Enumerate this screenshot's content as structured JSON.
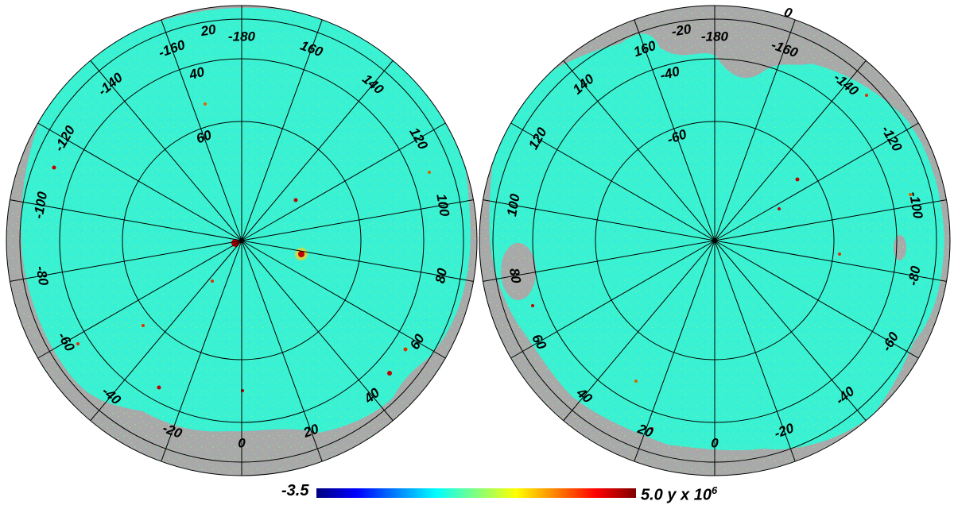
{
  "colors": {
    "mask": "#a9a9a9",
    "field": "#38f2d3",
    "grid": "#000000",
    "colormap": [
      "#00007f",
      "#0000ff",
      "#0080ff",
      "#00ffff",
      "#80ff80",
      "#ffff00",
      "#ff8000",
      "#ff0000",
      "#7f0000"
    ]
  },
  "colorbar": {
    "min_label": "-3.5",
    "max_label": "5.0 y x 10",
    "max_exponent": "6"
  },
  "hemispheres": [
    {
      "id": "left",
      "latitude_labels": [
        "20",
        "40",
        "60"
      ],
      "longitude_labels": [
        "-180",
        "-160",
        "-140",
        "-120",
        "-100",
        "-80",
        "-60",
        "-40",
        "-20",
        "0",
        "20",
        "40",
        "60",
        "80",
        "100",
        "120",
        "140",
        "160"
      ]
    },
    {
      "id": "right",
      "latitude_labels": [
        "-20",
        "-40",
        "-60"
      ],
      "edge_label": "0",
      "longitude_labels": [
        "-180",
        "-160",
        "-140",
        "-120",
        "-100",
        "-80",
        "-60",
        "-40",
        "-20",
        "0",
        "20",
        "40",
        "60",
        "80",
        "100",
        "120",
        "140",
        "160"
      ]
    }
  ]
}
